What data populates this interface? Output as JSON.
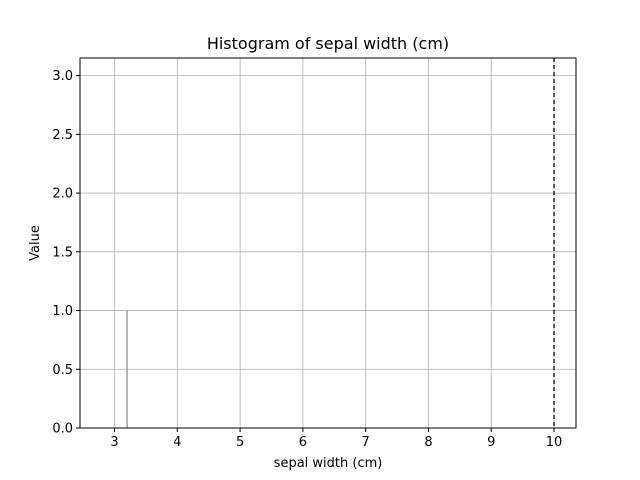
{
  "chart_data": {
    "type": "bar",
    "title": "Histogram of sepal width (cm)",
    "xlabel": "sepal width (cm)",
    "ylabel": "Value",
    "xlim": [
      2.45,
      10.35
    ],
    "ylim": [
      0,
      3.15
    ],
    "grid": true,
    "x_ticks": [
      3,
      4,
      5,
      6,
      7,
      8,
      9,
      10
    ],
    "y_ticks": [
      0.0,
      0.5,
      1.0,
      1.5,
      2.0,
      2.5,
      3.0
    ],
    "x_tick_labels": [
      "3",
      "4",
      "5",
      "6",
      "7",
      "8",
      "9",
      "10"
    ],
    "y_tick_labels": [
      "0.0",
      "0.5",
      "1.0",
      "1.5",
      "2.0",
      "2.5",
      "3.0"
    ],
    "bars": [
      {
        "x_start": 3.19,
        "x_end": 3.21,
        "value": 1.0
      }
    ],
    "bar_color": "#6aa86a",
    "reference_line": {
      "x": 10.0,
      "style": "dashed",
      "color": "#000000"
    }
  }
}
